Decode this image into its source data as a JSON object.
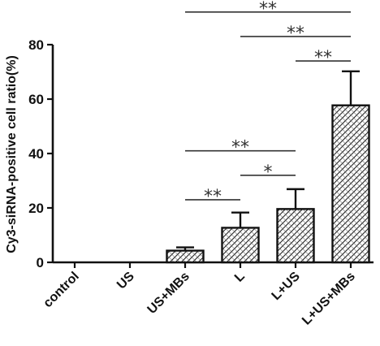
{
  "chart_data": {
    "type": "bar",
    "title": "",
    "xlabel": "",
    "ylabel": "Cy3-siRNA-positive cell ratio(%)",
    "ylim": [
      0,
      80
    ],
    "yticks": [
      "0",
      "20",
      "40",
      "60",
      "80"
    ],
    "ytick_values": [
      0,
      20,
      40,
      60,
      80
    ],
    "categories": [
      "control",
      "US",
      "US+MBs",
      "L",
      "L+US",
      "L+US+MBs"
    ],
    "values": [
      0,
      0,
      4.3,
      12.7,
      19.6,
      57.7
    ],
    "errors": [
      0,
      0,
      1.2,
      5.6,
      7.3,
      12.5
    ],
    "grid": false,
    "pattern": "hatched",
    "significance": [
      {
        "from": "US+MBs",
        "to": "L+US+MBs",
        "label": "**",
        "y": 92
      },
      {
        "from": "L",
        "to": "L+US+MBs",
        "label": "**",
        "y": 83
      },
      {
        "from": "L+US",
        "to": "L+US+MBs",
        "label": "**",
        "y": 74
      },
      {
        "from": "US+MBs",
        "to": "L+US",
        "label": "**",
        "y": 41
      },
      {
        "from": "L",
        "to": "L+US",
        "label": "*",
        "y": 32
      },
      {
        "from": "US+MBs",
        "to": "L",
        "label": "**",
        "y": 23
      }
    ]
  }
}
